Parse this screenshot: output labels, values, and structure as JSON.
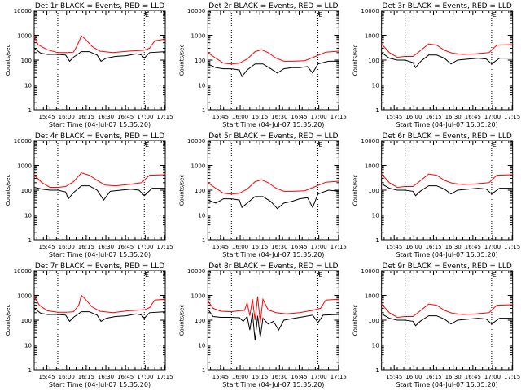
{
  "panels": [
    {
      "title": "Det 1r BLACK = Events, RED = LLD",
      "ylabel": "Counts/sec",
      "xlabel": "Start Time (04-Jul-07 15:35:20)",
      "corner": "E",
      "red_poly_key": "A_red",
      "black_poly_key": "A_black"
    },
    {
      "title": "Det 2r BLACK = Events, RED = LLD",
      "ylabel": "Counts/sec",
      "xlabel": "Start Time (04-Jul-07 15:35:20)",
      "corner": "E",
      "red_poly_key": "B_red",
      "black_poly_key": "B_black"
    },
    {
      "title": "Det 3r BLACK = Events, RED = LLD",
      "ylabel": "Counts/sec",
      "xlabel": "Start Time (04-Jul-07 15:35:20)",
      "corner": "E",
      "red_poly_key": "C_red",
      "black_poly_key": "C_black"
    },
    {
      "title": "Det 4r BLACK = Events, RED = LLD",
      "ylabel": "Counts/sec",
      "xlabel": "Start Time (04-Jul-07 15:35:20)",
      "corner": "E",
      "red_poly_key": "D_red",
      "black_poly_key": "D_black"
    },
    {
      "title": "Det 5r BLACK = Events, RED = LLD",
      "ylabel": "Counts/sec",
      "xlabel": "Start Time (04-Jul-07 15:35:20)",
      "corner": "E",
      "red_poly_key": "B_red",
      "black_poly_key": "B_black2"
    },
    {
      "title": "Det 6r BLACK = Events, RED = LLD",
      "ylabel": "Counts/sec",
      "xlabel": "Start Time (04-Jul-07 15:35:20)",
      "corner": "E",
      "red_poly_key": "C_red",
      "black_poly_key": "E_black"
    },
    {
      "title": "Det 7r BLACK = Events, RED = LLD",
      "ylabel": "Counts/sec",
      "xlabel": "Start Time (04-Jul-07 15:35:20)",
      "corner": "E",
      "red_poly_key": "F_red",
      "black_poly_key": "A_black"
    },
    {
      "title": "Det 8r BLACK = Events, RED = LLD",
      "ylabel": "Counts/sec",
      "xlabel": "Start Time (04-Jul-07 15:35:20)",
      "corner": "E",
      "red_poly_key": "G_red",
      "black_poly_key": "G_black"
    },
    {
      "title": "Det 9r BLACK = Events, RED = LLD",
      "ylabel": "Counts/sec",
      "xlabel": "Start Time (04-Jul-07 15:35:20)",
      "corner": "E",
      "red_poly_key": "C_red",
      "black_poly_key": "E_black"
    }
  ],
  "chart_data": {
    "type": "line",
    "layout": "3x3 grid",
    "scale": "log",
    "grid": false,
    "ylim": [
      1,
      10000
    ],
    "yticks": [
      "1",
      "10",
      "100",
      "1000",
      "10000"
    ],
    "xticks": [
      "15:45",
      "16:00",
      "16:15",
      "16:30",
      "16:45",
      "17:00",
      "17:15"
    ],
    "xtick_minutes_after_start": [
      9.67,
      24.67,
      39.67,
      54.67,
      69.67,
      84.67,
      99.67
    ],
    "xlim_minutes_after_start": [
      0,
      100
    ],
    "vertical_dotted_lines": [
      {
        "panel": "Det 1r",
        "minutes": [
          18,
          84
        ]
      },
      {
        "panel": "Det 2r",
        "minutes": [
          18,
          84
        ]
      },
      {
        "panel": "Det 3r",
        "minutes": [
          18,
          84
        ]
      },
      {
        "panel": "Det 4r",
        "minutes": [
          18,
          84
        ]
      },
      {
        "panel": "Det 5r",
        "minutes": [
          18,
          84
        ]
      },
      {
        "panel": "Det 6r",
        "minutes": [
          18,
          84
        ]
      },
      {
        "panel": "Det 7r",
        "minutes": [
          18,
          84
        ]
      },
      {
        "panel": "Det 8r",
        "minutes": [
          18,
          84
        ]
      },
      {
        "panel": "Det 9r",
        "minutes": [
          18,
          84
        ]
      }
    ],
    "colors": {
      "events": "#000000",
      "lld": "#ff0000"
    },
    "series_points": {
      "A_red": [
        [
          0,
          900
        ],
        [
          3,
          420
        ],
        [
          10,
          260
        ],
        [
          18,
          200
        ],
        [
          25,
          200
        ],
        [
          30,
          210
        ],
        [
          33,
          400
        ],
        [
          36,
          950
        ],
        [
          39,
          700
        ],
        [
          44,
          360
        ],
        [
          50,
          230
        ],
        [
          60,
          200
        ],
        [
          72,
          230
        ],
        [
          84,
          250
        ],
        [
          88,
          300
        ],
        [
          92,
          600
        ],
        [
          100,
          700
        ]
      ],
      "A_black": [
        [
          0,
          300
        ],
        [
          5,
          190
        ],
        [
          10,
          170
        ],
        [
          18,
          170
        ],
        [
          24,
          160
        ],
        [
          27,
          90
        ],
        [
          30,
          130
        ],
        [
          36,
          220
        ],
        [
          42,
          220
        ],
        [
          48,
          160
        ],
        [
          51,
          90
        ],
        [
          55,
          120
        ],
        [
          62,
          140
        ],
        [
          70,
          150
        ],
        [
          78,
          180
        ],
        [
          82,
          160
        ],
        [
          84,
          120
        ],
        [
          88,
          200
        ],
        [
          100,
          220
        ]
      ],
      "B_red": [
        [
          0,
          200
        ],
        [
          6,
          120
        ],
        [
          12,
          75
        ],
        [
          18,
          70
        ],
        [
          24,
          75
        ],
        [
          30,
          110
        ],
        [
          36,
          220
        ],
        [
          41,
          260
        ],
        [
          46,
          200
        ],
        [
          52,
          120
        ],
        [
          58,
          90
        ],
        [
          65,
          90
        ],
        [
          74,
          95
        ],
        [
          82,
          140
        ],
        [
          90,
          210
        ],
        [
          100,
          230
        ]
      ],
      "B_black": [
        [
          0,
          70
        ],
        [
          6,
          50
        ],
        [
          12,
          45
        ],
        [
          18,
          45
        ],
        [
          24,
          40
        ],
        [
          26,
          22
        ],
        [
          30,
          40
        ],
        [
          36,
          70
        ],
        [
          42,
          70
        ],
        [
          48,
          45
        ],
        [
          53,
          30
        ],
        [
          58,
          45
        ],
        [
          64,
          50
        ],
        [
          70,
          50
        ],
        [
          76,
          55
        ],
        [
          80,
          30
        ],
        [
          84,
          70
        ],
        [
          92,
          90
        ],
        [
          100,
          90
        ]
      ],
      "B_black2": [
        [
          0,
          40
        ],
        [
          6,
          30
        ],
        [
          12,
          45
        ],
        [
          18,
          45
        ],
        [
          24,
          40
        ],
        [
          26,
          20
        ],
        [
          30,
          30
        ],
        [
          36,
          55
        ],
        [
          42,
          55
        ],
        [
          48,
          35
        ],
        [
          53,
          18
        ],
        [
          58,
          30
        ],
        [
          64,
          35
        ],
        [
          70,
          45
        ],
        [
          76,
          50
        ],
        [
          80,
          20
        ],
        [
          84,
          70
        ],
        [
          92,
          100
        ],
        [
          100,
          90
        ]
      ],
      "C_red": [
        [
          0,
          450
        ],
        [
          6,
          200
        ],
        [
          12,
          130
        ],
        [
          18,
          140
        ],
        [
          24,
          140
        ],
        [
          30,
          250
        ],
        [
          36,
          450
        ],
        [
          42,
          400
        ],
        [
          48,
          250
        ],
        [
          54,
          190
        ],
        [
          62,
          170
        ],
        [
          72,
          180
        ],
        [
          82,
          200
        ],
        [
          88,
          400
        ],
        [
          100,
          420
        ]
      ],
      "C_black": [
        [
          0,
          200
        ],
        [
          6,
          120
        ],
        [
          12,
          100
        ],
        [
          18,
          100
        ],
        [
          24,
          80
        ],
        [
          26,
          50
        ],
        [
          30,
          90
        ],
        [
          36,
          160
        ],
        [
          42,
          160
        ],
        [
          48,
          120
        ],
        [
          53,
          70
        ],
        [
          58,
          100
        ],
        [
          66,
          110
        ],
        [
          74,
          120
        ],
        [
          80,
          110
        ],
        [
          84,
          70
        ],
        [
          90,
          120
        ],
        [
          100,
          120
        ]
      ],
      "D_red": [
        [
          0,
          400
        ],
        [
          6,
          200
        ],
        [
          12,
          130
        ],
        [
          18,
          130
        ],
        [
          24,
          140
        ],
        [
          30,
          220
        ],
        [
          36,
          500
        ],
        [
          42,
          400
        ],
        [
          48,
          250
        ],
        [
          54,
          160
        ],
        [
          62,
          150
        ],
        [
          72,
          170
        ],
        [
          82,
          200
        ],
        [
          88,
          400
        ],
        [
          100,
          420
        ]
      ],
      "D_black": [
        [
          0,
          130
        ],
        [
          6,
          110
        ],
        [
          12,
          100
        ],
        [
          18,
          100
        ],
        [
          24,
          85
        ],
        [
          26,
          45
        ],
        [
          30,
          80
        ],
        [
          36,
          150
        ],
        [
          42,
          150
        ],
        [
          48,
          100
        ],
        [
          53,
          40
        ],
        [
          58,
          90
        ],
        [
          66,
          100
        ],
        [
          74,
          110
        ],
        [
          80,
          100
        ],
        [
          84,
          60
        ],
        [
          90,
          120
        ],
        [
          100,
          120
        ]
      ],
      "E_black": [
        [
          0,
          180
        ],
        [
          6,
          120
        ],
        [
          12,
          100
        ],
        [
          18,
          100
        ],
        [
          24,
          90
        ],
        [
          26,
          60
        ],
        [
          30,
          95
        ],
        [
          36,
          150
        ],
        [
          42,
          150
        ],
        [
          48,
          110
        ],
        [
          53,
          70
        ],
        [
          58,
          100
        ],
        [
          66,
          110
        ],
        [
          74,
          120
        ],
        [
          80,
          110
        ],
        [
          84,
          70
        ],
        [
          90,
          120
        ],
        [
          100,
          120
        ]
      ],
      "F_red": [
        [
          0,
          900
        ],
        [
          4,
          400
        ],
        [
          10,
          240
        ],
        [
          18,
          210
        ],
        [
          25,
          210
        ],
        [
          30,
          220
        ],
        [
          34,
          400
        ],
        [
          36,
          1000
        ],
        [
          39,
          700
        ],
        [
          44,
          350
        ],
        [
          50,
          230
        ],
        [
          60,
          200
        ],
        [
          72,
          240
        ],
        [
          84,
          260
        ],
        [
          88,
          320
        ],
        [
          92,
          650
        ],
        [
          100,
          700
        ]
      ],
      "G_red": [
        [
          0,
          600
        ],
        [
          4,
          300
        ],
        [
          10,
          230
        ],
        [
          18,
          220
        ],
        [
          24,
          240
        ],
        [
          28,
          250
        ],
        [
          30,
          500
        ],
        [
          32,
          150
        ],
        [
          34,
          700
        ],
        [
          36,
          100
        ],
        [
          38,
          900
        ],
        [
          40,
          80
        ],
        [
          42,
          700
        ],
        [
          46,
          260
        ],
        [
          52,
          200
        ],
        [
          60,
          180
        ],
        [
          70,
          200
        ],
        [
          80,
          250
        ],
        [
          86,
          300
        ],
        [
          90,
          650
        ],
        [
          100,
          700
        ]
      ],
      "G_black": [
        [
          0,
          280
        ],
        [
          4,
          140
        ],
        [
          10,
          130
        ],
        [
          18,
          130
        ],
        [
          24,
          125
        ],
        [
          27,
          90
        ],
        [
          30,
          140
        ],
        [
          32,
          40
        ],
        [
          34,
          200
        ],
        [
          36,
          15
        ],
        [
          38,
          150
        ],
        [
          40,
          20
        ],
        [
          42,
          120
        ],
        [
          46,
          70
        ],
        [
          50,
          90
        ],
        [
          54,
          40
        ],
        [
          58,
          100
        ],
        [
          66,
          120
        ],
        [
          74,
          140
        ],
        [
          80,
          160
        ],
        [
          84,
          80
        ],
        [
          88,
          160
        ],
        [
          100,
          170
        ]
      ]
    }
  }
}
